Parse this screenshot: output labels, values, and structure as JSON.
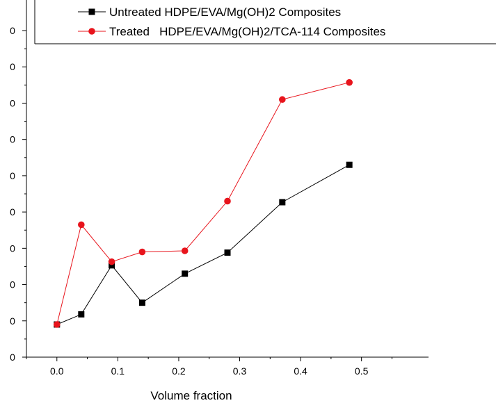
{
  "chart_data": {
    "type": "line",
    "title": "",
    "xlabel": "Volume fraction",
    "ylabel": "",
    "x_ticks": [
      0.0,
      0.1,
      0.2,
      0.3,
      0.4,
      0.5
    ],
    "x_tick_labels": [
      "0.0",
      "0.1",
      "0.2",
      "0.3",
      "0.4",
      "0.5"
    ],
    "y_tick_labels": [
      "0",
      "0",
      "0",
      "0",
      "0",
      "0",
      "0",
      "0",
      "0",
      "0"
    ],
    "xlim": [
      -0.05,
      0.61
    ],
    "ylim": [
      0,
      9
    ],
    "grid": false,
    "legend_position": "top",
    "series": [
      {
        "name": "Untreated HDPE/EVA/Mg(OH)2 Composites",
        "color": "#000000",
        "marker": "square",
        "x": [
          0.0,
          0.04,
          0.09,
          0.14,
          0.21,
          0.28,
          0.37,
          0.48
        ],
        "y": [
          0.9,
          1.18,
          2.53,
          1.5,
          2.3,
          2.88,
          4.27,
          5.3
        ]
      },
      {
        "name": "Treated   HDPE/EVA/Mg(OH)2/TCA-114 Composites",
        "color": "#e8141c",
        "marker": "circle",
        "x": [
          0.0,
          0.04,
          0.09,
          0.14,
          0.21,
          0.28,
          0.37,
          0.48
        ],
        "y": [
          0.9,
          3.65,
          2.63,
          2.9,
          2.93,
          4.3,
          7.1,
          7.57
        ]
      }
    ]
  }
}
